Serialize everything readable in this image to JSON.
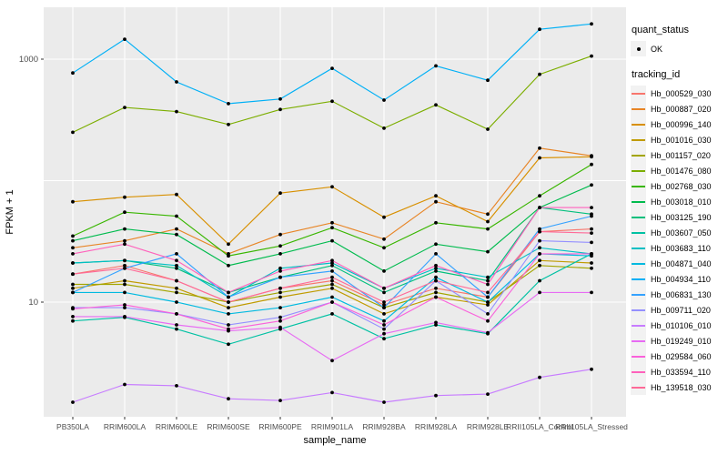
{
  "chart_data": {
    "type": "line",
    "xlabel": "sample_name",
    "ylabel": "FPKM + 1",
    "y_scale": "log10",
    "ylim": [
      1.13,
      2700
    ],
    "grid": true,
    "panel_bg": "#EBEBEB",
    "grid_color": "#FFFFFF",
    "point_color": "#000000",
    "y_ticks": [
      {
        "label": "1000",
        "value": 1000
      },
      {
        "label": "10",
        "value": 10
      }
    ],
    "y_gridlines": [
      1000,
      100,
      10
    ],
    "categories": [
      "PB350LA",
      "RRIM600LA",
      "RRIM600LE",
      "RRIM600SE",
      "RRIM600PE",
      "RRIM901LA",
      "RRIM928BA",
      "RRIM928LA",
      "RRIM928LE",
      "RRII105LA_Control",
      "RRII105LA_Stressed"
    ],
    "series": [
      {
        "name": "Hb_000529_030",
        "color": "#F8766D",
        "values": [
          17,
          20,
          15,
          10,
          13,
          15,
          9.5,
          13,
          11,
          38,
          40
        ]
      },
      {
        "name": "Hb_000887_020",
        "color": "#E88526",
        "values": [
          28,
          32,
          40,
          25,
          36,
          45,
          33,
          67,
          53,
          185,
          160
        ]
      },
      {
        "name": "Hb_000996_140",
        "color": "#D89000",
        "values": [
          67,
          73,
          77,
          30,
          79,
          89,
          50,
          75,
          46,
          154,
          157
        ]
      },
      {
        "name": "Hb_001016_030",
        "color": "#C09B00",
        "values": [
          13,
          15,
          13,
          9,
          11,
          13,
          8,
          11,
          9.5,
          22,
          21
        ]
      },
      {
        "name": "Hb_001157_020",
        "color": "#A3A500",
        "values": [
          14,
          14,
          12,
          10,
          12,
          14,
          9,
          12,
          10,
          20,
          19
        ]
      },
      {
        "name": "Hb_001476_080",
        "color": "#7CAE00",
        "values": [
          250,
          400,
          370,
          290,
          385,
          450,
          270,
          420,
          265,
          750,
          1060
        ]
      },
      {
        "name": "Hb_002768_030",
        "color": "#39B600",
        "values": [
          35,
          55,
          51,
          24,
          29,
          41,
          28,
          45,
          40,
          75,
          136
        ]
      },
      {
        "name": "Hb_003018_010",
        "color": "#00BB4E",
        "values": [
          32,
          40,
          36,
          20,
          25,
          32,
          18,
          30,
          26,
          60,
          92
        ]
      },
      {
        "name": "Hb_003125_190",
        "color": "#00BF7D",
        "values": [
          21,
          22,
          19,
          12,
          16,
          20,
          12,
          18,
          15,
          60,
          53
        ]
      },
      {
        "name": "Hb_003607_050",
        "color": "#00C1A3",
        "values": [
          7,
          7.5,
          6,
          4.5,
          6,
          8,
          5,
          6.5,
          5.5,
          15,
          25
        ]
      },
      {
        "name": "Hb_003683_110",
        "color": "#00BFC4",
        "values": [
          21,
          22,
          20,
          11,
          19,
          21,
          13,
          19,
          16,
          28,
          25
        ]
      },
      {
        "name": "Hb_004871_040",
        "color": "#00BAE0",
        "values": [
          12,
          12,
          10,
          8,
          9,
          11,
          7,
          16,
          10,
          25,
          24
        ]
      },
      {
        "name": "Hb_004934_110",
        "color": "#00B0F6",
        "values": [
          770,
          1460,
          650,
          430,
          470,
          840,
          460,
          880,
          670,
          1760,
          1950
        ]
      },
      {
        "name": "Hb_006831_130",
        "color": "#35A2FF",
        "values": [
          12,
          19,
          25,
          11,
          16,
          18,
          9,
          25,
          11,
          40,
          51
        ]
      },
      {
        "name": "Hb_009711_020",
        "color": "#9590FF",
        "values": [
          9,
          9,
          8,
          6.5,
          7.5,
          10,
          6,
          15,
          8,
          32,
          31
        ]
      },
      {
        "name": "Hb_010106_010",
        "color": "#C77CFF",
        "values": [
          1.5,
          2.1,
          2.05,
          1.6,
          1.55,
          1.8,
          1.5,
          1.7,
          1.75,
          2.4,
          2.8
        ]
      },
      {
        "name": "Hb_019249_010",
        "color": "#E76BF3",
        "values": [
          7.6,
          7.6,
          6.5,
          5.8,
          6.2,
          3.3,
          5.5,
          6.8,
          5.6,
          12,
          12
        ]
      },
      {
        "name": "Hb_029584_060",
        "color": "#FA62DB",
        "values": [
          8.8,
          9.5,
          8,
          6,
          7,
          10,
          6.5,
          11,
          7,
          25,
          25
        ]
      },
      {
        "name": "Hb_033594_110",
        "color": "#FF62BC",
        "values": [
          25,
          30,
          22,
          12,
          18,
          22,
          13,
          20,
          14,
          60,
          60
        ]
      },
      {
        "name": "Hb_139518_030",
        "color": "#FF6A98",
        "values": [
          17,
          19,
          15,
          10,
          13,
          16,
          10,
          15,
          12,
          38,
          37
        ]
      }
    ]
  },
  "legend": {
    "quant_status": {
      "title": "quant_status",
      "items": [
        {
          "label": "OK",
          "marker": "point"
        }
      ]
    },
    "tracking_id": {
      "title": "tracking_id"
    }
  }
}
